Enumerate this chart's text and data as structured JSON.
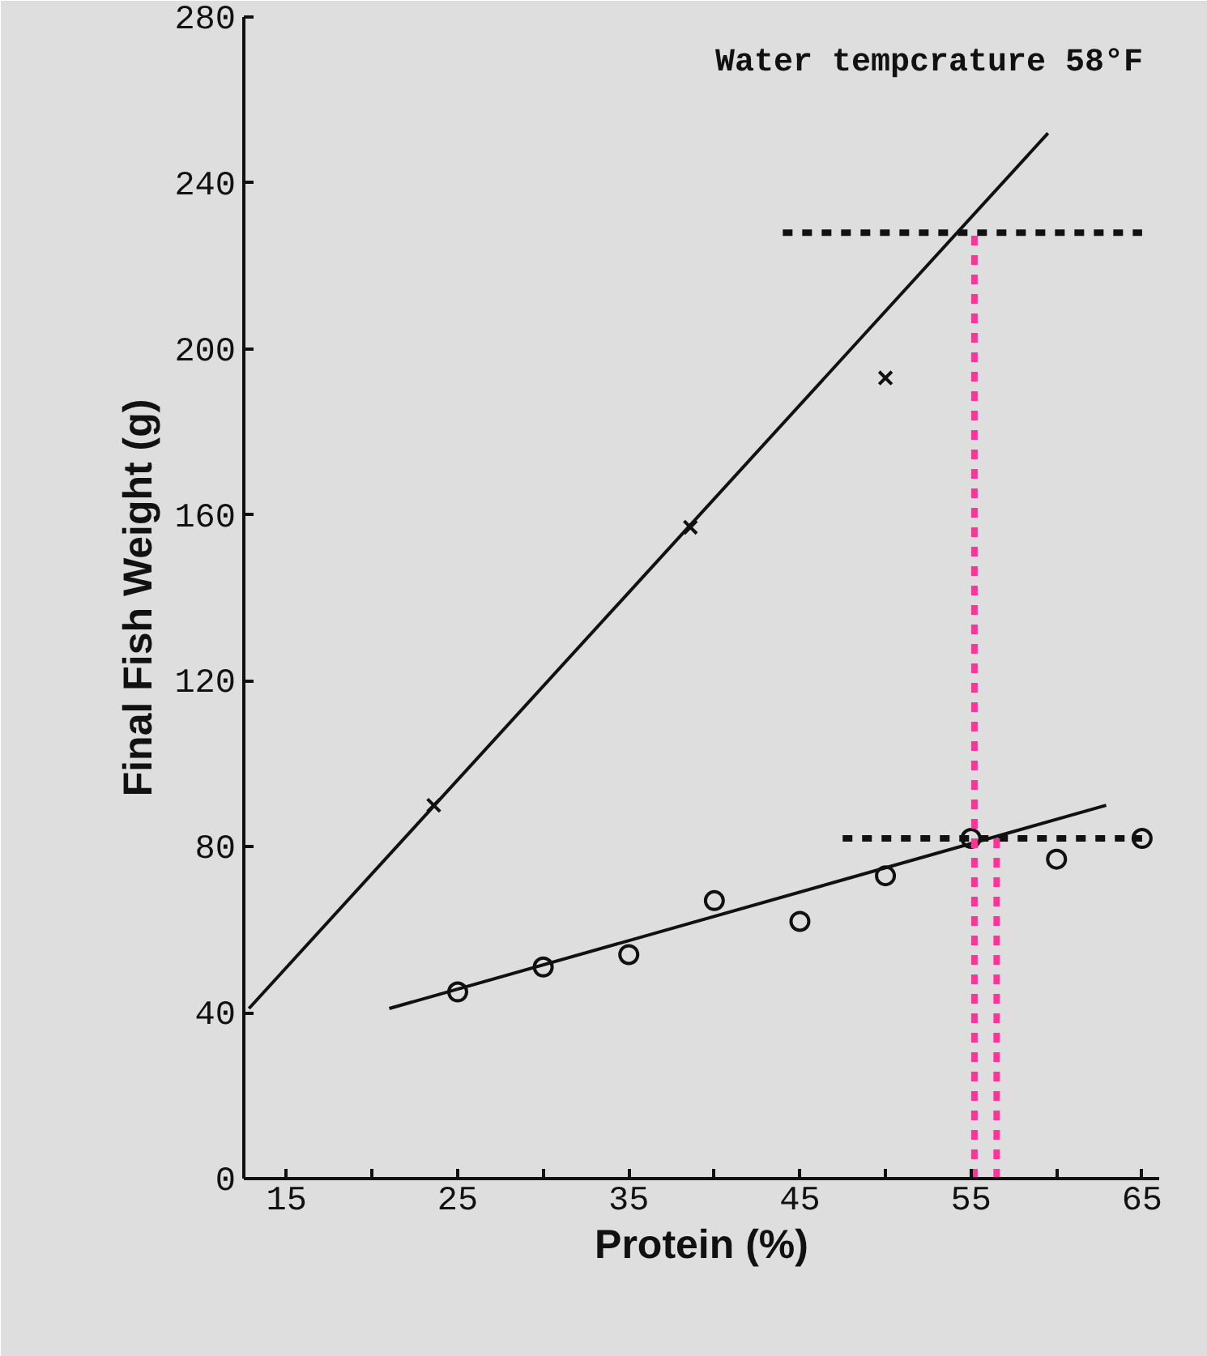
{
  "chart_data": {
    "type": "scatter",
    "xlabel": "Protein (%)",
    "ylabel": "Final Fish Weight (g)",
    "annotations": [
      "Water tempcrature 58°F"
    ],
    "xlim": [
      12.5,
      66
    ],
    "ylim": [
      0,
      280
    ],
    "xticks": [
      15,
      {
        "value": 20,
        "label": null
      },
      25,
      {
        "value": 30,
        "label": null
      },
      35,
      {
        "value": 40,
        "label": null
      },
      45,
      {
        "value": 50,
        "label": null
      },
      55,
      {
        "value": 60,
        "label": null
      },
      65
    ],
    "yticks": [
      0,
      40,
      80,
      120,
      160,
      200,
      240,
      280
    ],
    "grid": false,
    "series": [
      {
        "marker": "cross",
        "color": "#111111",
        "x": [
          23.6,
          38.6,
          50
        ],
        "values": [
          90,
          157,
          193
        ]
      },
      {
        "marker": "circle",
        "color": "#111111",
        "x": [
          25,
          30,
          35,
          40,
          45,
          50,
          55,
          60,
          65
        ],
        "values": [
          45,
          51,
          54,
          67,
          62,
          73,
          82,
          77,
          82
        ]
      },
      {
        "type": "line",
        "marker": "none",
        "line_style": "solid",
        "color": "#111111",
        "x": [
          12.8,
          59.5
        ],
        "values": [
          41,
          252
        ]
      },
      {
        "type": "line",
        "marker": "none",
        "line_style": "solid",
        "color": "#111111",
        "x": [
          21,
          62.9
        ],
        "values": [
          41,
          90
        ]
      },
      {
        "type": "line",
        "marker": "none",
        "line_style": "dashed",
        "color": "#111111",
        "x": [
          44,
          65
        ],
        "values": [
          228,
          228
        ]
      },
      {
        "type": "line",
        "marker": "none",
        "line_style": "dashed",
        "color": "#111111",
        "x": [
          47.5,
          65
        ],
        "values": [
          82,
          82
        ]
      },
      {
        "type": "line",
        "marker": "none",
        "line_style": "dashed",
        "color": "#ff3399",
        "x": [
          55.2,
          55.2
        ],
        "values": [
          0,
          228
        ]
      },
      {
        "type": "line",
        "marker": "none",
        "line_style": "dashed",
        "color": "#ff3399",
        "x": [
          56.5,
          56.5
        ],
        "values": [
          0,
          82
        ]
      }
    ]
  }
}
